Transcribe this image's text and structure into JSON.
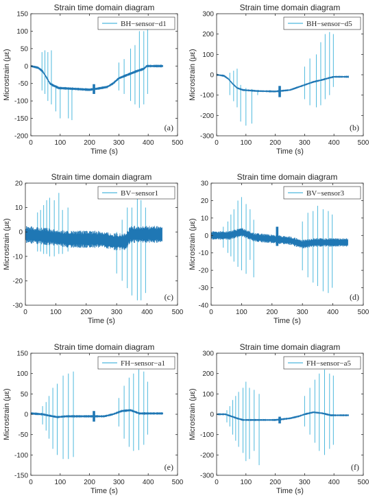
{
  "figure": {
    "colors": {
      "spike": "#4cb8dd",
      "band": "#1f77b4",
      "axis": "#262626"
    }
  },
  "chart_data": [
    {
      "type": "line",
      "title": "Strain time domain diagram",
      "xlabel": "Time (s)",
      "ylabel": "Microstrain (με)",
      "xlim": [
        0,
        500
      ],
      "ylim": [
        -200,
        150
      ],
      "xticks": [
        0,
        100,
        200,
        300,
        400,
        500
      ],
      "yticks": [
        -200,
        -150,
        -100,
        -50,
        0,
        50,
        100,
        150
      ],
      "legend": {
        "label": "BH−sensor−d1",
        "position": "top-right"
      },
      "panel_tag": "(a)",
      "grid": false,
      "series": [
        {
          "name": "BH−sensor−d1",
          "baseline": {
            "x": [
              0,
              25,
              40,
              55,
              65,
              75,
              95,
              140,
              200,
              215,
              225,
              260,
              280,
              300,
              330,
              360,
              385,
              395,
              450
            ],
            "y": [
              0,
              -5,
              -15,
              -35,
              -50,
              -55,
              -63,
              -65,
              -68,
              -66,
              -65,
              -60,
              -50,
              -35,
              -25,
              -15,
              -8,
              0,
              0
            ],
            "band_halfwidth": 4
          },
          "spikes": [
            {
              "x": 38,
              "min": -70,
              "max": 40
            },
            {
              "x": 48,
              "min": -80,
              "max": 45
            },
            {
              "x": 58,
              "min": -100,
              "max": 40
            },
            {
              "x": 70,
              "min": -110,
              "max": 45
            },
            {
              "x": 85,
              "min": -130,
              "max": -55
            },
            {
              "x": 100,
              "min": -150,
              "max": -60
            },
            {
              "x": 128,
              "min": -150,
              "max": -62
            },
            {
              "x": 140,
              "min": -155,
              "max": -63
            },
            {
              "x": 300,
              "min": -70,
              "max": 10
            },
            {
              "x": 318,
              "min": -80,
              "max": 20
            },
            {
              "x": 340,
              "min": -100,
              "max": 50
            },
            {
              "x": 355,
              "min": -110,
              "max": 60
            },
            {
              "x": 370,
              "min": -120,
              "max": 100
            },
            {
              "x": 385,
              "min": -110,
              "max": 100
            },
            {
              "x": 398,
              "min": -80,
              "max": 110
            }
          ],
          "bursts": [
            {
              "x": 215,
              "min": -80,
              "max": -52
            }
          ]
        }
      ]
    },
    {
      "type": "line",
      "title": "Strain time domain diagram",
      "xlabel": "Time (s)",
      "ylabel": "Microstrain (με)",
      "xlim": [
        0,
        500
      ],
      "ylim": [
        -300,
        300
      ],
      "xticks": [
        0,
        100,
        200,
        300,
        400,
        500
      ],
      "yticks": [
        -300,
        -200,
        -100,
        0,
        100,
        200,
        300
      ],
      "legend": {
        "label": "BH−sensor−d5",
        "position": "top-right"
      },
      "panel_tag": "(b)",
      "grid": false,
      "series": [
        {
          "name": "BH−sensor−d5",
          "baseline": {
            "x": [
              0,
              25,
              40,
              55,
              70,
              90,
              140,
              200,
              215,
              250,
              280,
              300,
              330,
              360,
              385,
              400,
              450
            ],
            "y": [
              0,
              -5,
              -20,
              -45,
              -65,
              -75,
              -80,
              -82,
              -80,
              -75,
              -60,
              -50,
              -35,
              -25,
              -15,
              -10,
              -10
            ],
            "band_halfwidth": 5
          },
          "spikes": [
            {
              "x": 45,
              "min": -100,
              "max": 10
            },
            {
              "x": 58,
              "min": -130,
              "max": 20
            },
            {
              "x": 70,
              "min": -160,
              "max": 30
            },
            {
              "x": 82,
              "min": -230,
              "max": -50
            },
            {
              "x": 100,
              "min": -250,
              "max": -65
            },
            {
              "x": 120,
              "min": -240,
              "max": -70
            },
            {
              "x": 140,
              "min": -100,
              "max": -75
            },
            {
              "x": 300,
              "min": -120,
              "max": 40
            },
            {
              "x": 318,
              "min": -150,
              "max": 80
            },
            {
              "x": 340,
              "min": -160,
              "max": 100
            },
            {
              "x": 355,
              "min": -150,
              "max": 160
            },
            {
              "x": 370,
              "min": -120,
              "max": 200
            },
            {
              "x": 385,
              "min": -100,
              "max": 210
            },
            {
              "x": 398,
              "min": -60,
              "max": 200
            }
          ],
          "bursts": [
            {
              "x": 215,
              "min": -110,
              "max": -55
            }
          ]
        }
      ]
    },
    {
      "type": "line",
      "title": "Strain time domain diagram",
      "xlabel": "Time (s)",
      "ylabel": "Microstrain (με)",
      "xlim": [
        0,
        500
      ],
      "ylim": [
        -30,
        20
      ],
      "xticks": [
        0,
        100,
        200,
        300,
        400,
        500
      ],
      "yticks": [
        -30,
        -20,
        -10,
        0,
        10,
        20
      ],
      "legend": {
        "label": "BV−sensor1",
        "position": "top-right"
      },
      "panel_tag": "(c)",
      "grid": false,
      "series": [
        {
          "name": "BV−sensor1",
          "baseline": {
            "x": [
              0,
              80,
              140,
              200,
              250,
              290,
              330,
              345,
              450
            ],
            "y": [
              -1,
              -2,
              -3,
              -3,
              -3,
              -4,
              -4,
              -1,
              -1
            ],
            "band_halfwidth": 3.5
          },
          "spikes": [
            {
              "x": 40,
              "min": -8,
              "max": 8
            },
            {
              "x": 50,
              "min": -8,
              "max": 9
            },
            {
              "x": 60,
              "min": -9,
              "max": 11
            },
            {
              "x": 70,
              "min": -9,
              "max": 13
            },
            {
              "x": 80,
              "min": -10,
              "max": 14
            },
            {
              "x": 95,
              "min": -10,
              "max": 13
            },
            {
              "x": 110,
              "min": -9,
              "max": 16
            },
            {
              "x": 122,
              "min": -9,
              "max": 9
            },
            {
              "x": 140,
              "min": -8,
              "max": 10
            },
            {
              "x": 300,
              "min": -17,
              "max": 0
            },
            {
              "x": 318,
              "min": -20,
              "max": 5
            },
            {
              "x": 335,
              "min": -23,
              "max": 10
            },
            {
              "x": 350,
              "min": -26,
              "max": 10
            },
            {
              "x": 368,
              "min": -28,
              "max": 14
            },
            {
              "x": 380,
              "min": -28,
              "max": 13
            },
            {
              "x": 395,
              "min": -25,
              "max": 10
            }
          ],
          "bursts": []
        }
      ]
    },
    {
      "type": "line",
      "title": "Strain time domain diagram",
      "xlabel": "Time (s)",
      "ylabel": "Microstrain (με)",
      "xlim": [
        0,
        500
      ],
      "ylim": [
        -40,
        30
      ],
      "xticks": [
        0,
        100,
        200,
        300,
        400,
        500
      ],
      "yticks": [
        -40,
        -30,
        -20,
        -10,
        0,
        10,
        20,
        30
      ],
      "legend": {
        "label": "BV−sensor3",
        "position": "top-right"
      },
      "panel_tag": "(d)",
      "grid": false,
      "series": [
        {
          "name": "BV−sensor3",
          "baseline": {
            "x": [
              0,
              60,
              100,
              140,
              200,
              260,
              300,
              340,
              400,
              450
            ],
            "y": [
              0,
              0,
              2,
              -1,
              -2,
              -3,
              -5,
              -4,
              -4,
              -4
            ],
            "band_halfwidth": 2.5
          },
          "spikes": [
            {
              "x": 40,
              "min": -7,
              "max": 5
            },
            {
              "x": 55,
              "min": -10,
              "max": 8
            },
            {
              "x": 65,
              "min": -12,
              "max": 12
            },
            {
              "x": 75,
              "min": -15,
              "max": 15
            },
            {
              "x": 88,
              "min": -18,
              "max": 20
            },
            {
              "x": 100,
              "min": -20,
              "max": 22
            },
            {
              "x": 115,
              "min": -22,
              "max": 18
            },
            {
              "x": 128,
              "min": -14,
              "max": 15
            },
            {
              "x": 140,
              "min": -24,
              "max": 9
            },
            {
              "x": 300,
              "min": -20,
              "max": 8
            },
            {
              "x": 318,
              "min": -24,
              "max": 13
            },
            {
              "x": 335,
              "min": -27,
              "max": 14
            },
            {
              "x": 350,
              "min": -29,
              "max": 17
            },
            {
              "x": 368,
              "min": -32,
              "max": 15
            },
            {
              "x": 385,
              "min": -33,
              "max": 14
            },
            {
              "x": 398,
              "min": -30,
              "max": 12
            }
          ],
          "bursts": [
            {
              "x": 217,
              "min": -6,
              "max": 5
            }
          ]
        }
      ]
    },
    {
      "type": "line",
      "title": "Strain time domain diagram",
      "xlabel": "Time (s)",
      "ylabel": "Microstrain (με)",
      "xlim": [
        0,
        500
      ],
      "ylim": [
        -150,
        150
      ],
      "xticks": [
        0,
        100,
        200,
        300,
        400,
        500
      ],
      "yticks": [
        -150,
        -100,
        -50,
        0,
        50,
        100,
        150
      ],
      "legend": {
        "label": "FH−sensor−a1",
        "position": "top-right"
      },
      "panel_tag": "(e)",
      "grid": false,
      "series": [
        {
          "name": "FH−sensor−a1",
          "baseline": {
            "x": [
              0,
              40,
              60,
              90,
              120,
              180,
              210,
              250,
              280,
              310,
              340,
              370,
              400,
              450
            ],
            "y": [
              2,
              0,
              -3,
              -7,
              -5,
              -5,
              -5,
              -5,
              0,
              8,
              10,
              2,
              2,
              2
            ],
            "band_halfwidth": 3
          },
          "spikes": [
            {
              "x": 40,
              "min": -25,
              "max": 20
            },
            {
              "x": 52,
              "min": -40,
              "max": 30
            },
            {
              "x": 62,
              "min": -60,
              "max": 45
            },
            {
              "x": 75,
              "min": -85,
              "max": 65
            },
            {
              "x": 90,
              "min": -100,
              "max": 75
            },
            {
              "x": 110,
              "min": -110,
              "max": 95
            },
            {
              "x": 128,
              "min": -110,
              "max": 100
            },
            {
              "x": 145,
              "min": -105,
              "max": 105
            },
            {
              "x": 300,
              "min": -30,
              "max": 40
            },
            {
              "x": 318,
              "min": -60,
              "max": 70
            },
            {
              "x": 335,
              "min": -80,
              "max": 90
            },
            {
              "x": 350,
              "min": -90,
              "max": 100
            },
            {
              "x": 368,
              "min": -88,
              "max": 110
            },
            {
              "x": 385,
              "min": -75,
              "max": 105
            },
            {
              "x": 398,
              "min": -50,
              "max": 80
            }
          ],
          "bursts": [
            {
              "x": 215,
              "min": -18,
              "max": 8
            }
          ]
        }
      ]
    },
    {
      "type": "line",
      "title": "Strain time domain diagram",
      "xlabel": "Time (s)",
      "ylabel": "Microstrain (με)",
      "xlim": [
        0,
        500
      ],
      "ylim": [
        -300,
        300
      ],
      "xticks": [
        0,
        100,
        200,
        300,
        400,
        500
      ],
      "yticks": [
        -300,
        -200,
        -100,
        0,
        100,
        200,
        300
      ],
      "legend": {
        "label": "FH−sensor−a5",
        "position": "top-right"
      },
      "panel_tag": "(f)",
      "grid": false,
      "series": [
        {
          "name": "FH−sensor−a5",
          "baseline": {
            "x": [
              0,
              30,
              50,
              70,
              90,
              140,
              200,
              220,
              250,
              280,
              300,
              330,
              360,
              390,
              400,
              450
            ],
            "y": [
              0,
              0,
              -10,
              -20,
              -28,
              -28,
              -28,
              -25,
              -20,
              -10,
              0,
              10,
              5,
              -5,
              -5,
              -5
            ],
            "band_halfwidth": 5
          },
          "spikes": [
            {
              "x": 35,
              "min": -40,
              "max": 20
            },
            {
              "x": 45,
              "min": -60,
              "max": 40
            },
            {
              "x": 55,
              "min": -100,
              "max": 70
            },
            {
              "x": 65,
              "min": -130,
              "max": 90
            },
            {
              "x": 75,
              "min": -160,
              "max": 110
            },
            {
              "x": 90,
              "min": -190,
              "max": 130
            },
            {
              "x": 100,
              "min": -230,
              "max": 160
            },
            {
              "x": 112,
              "min": -220,
              "max": 130
            },
            {
              "x": 128,
              "min": -180,
              "max": 120
            },
            {
              "x": 145,
              "min": -250,
              "max": 100
            },
            {
              "x": 300,
              "min": -60,
              "max": 90
            },
            {
              "x": 318,
              "min": -100,
              "max": 130
            },
            {
              "x": 335,
              "min": -140,
              "max": 170
            },
            {
              "x": 350,
              "min": -180,
              "max": 200
            },
            {
              "x": 368,
              "min": -200,
              "max": 220
            },
            {
              "x": 385,
              "min": -170,
              "max": 200
            },
            {
              "x": 398,
              "min": -150,
              "max": 190
            }
          ],
          "bursts": [
            {
              "x": 215,
              "min": -45,
              "max": -12
            }
          ]
        }
      ]
    }
  ]
}
